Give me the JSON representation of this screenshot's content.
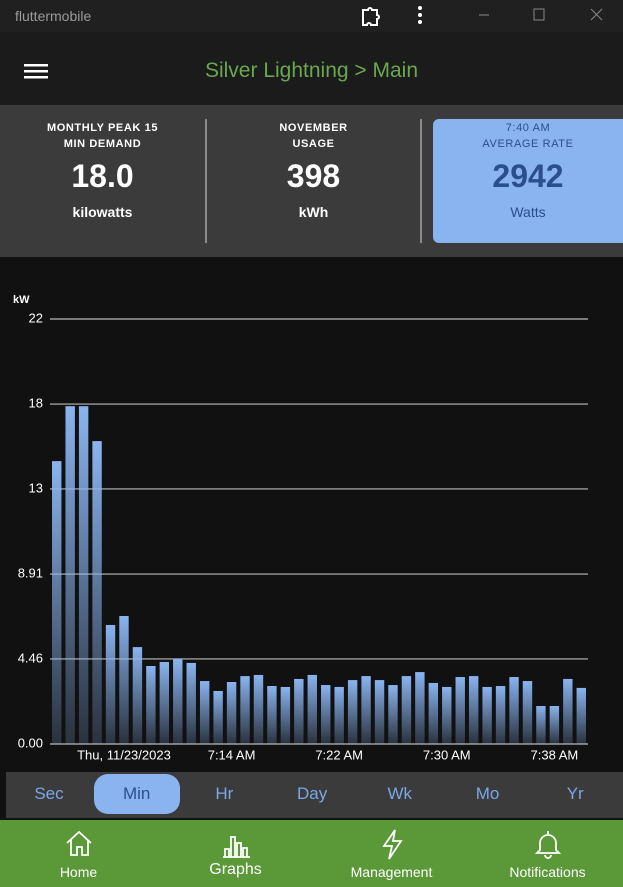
{
  "window": {
    "title": "fluttermobile"
  },
  "app_bar": {
    "title": "Silver Lightning > Main"
  },
  "stats": [
    {
      "label_lines": [
        "MONTHLY PEAK 15",
        "MIN DEMAND"
      ],
      "value": "18.0",
      "unit": "kilowatts"
    },
    {
      "label_lines": [
        "NOVEMBER",
        "USAGE"
      ],
      "value": "398",
      "unit": "kWh"
    },
    {
      "label_lines": [
        "7:40 AM",
        "AVERAGE RATE"
      ],
      "value": "2942",
      "unit": "Watts"
    }
  ],
  "chart_data": {
    "type": "bar",
    "y_label": "kW",
    "color": "#8ab4f0",
    "categories": [
      null,
      null,
      null,
      null,
      null,
      "Thu, 11/23/2023",
      null,
      null,
      null,
      null,
      null,
      null,
      null,
      "7:14 AM",
      null,
      null,
      null,
      null,
      null,
      null,
      null,
      "7:22 AM",
      null,
      null,
      null,
      null,
      null,
      null,
      null,
      "7:30 AM",
      null,
      null,
      null,
      null,
      null,
      null,
      null,
      "7:38 AM",
      null,
      null
    ],
    "values": [
      14.83,
      17.71,
      17.71,
      15.88,
      6.24,
      6.71,
      5.08,
      4.09,
      4.3,
      4.46,
      4.25,
      3.3,
      2.78,
      3.25,
      3.56,
      3.62,
      3.04,
      2.99,
      3.41,
      3.62,
      3.09,
      2.99,
      3.35,
      3.56,
      3.35,
      3.09,
      3.56,
      3.77,
      3.2,
      2.99,
      3.51,
      3.56,
      2.99,
      3.04,
      3.51,
      3.3,
      1.99,
      1.99,
      3.41,
      2.94
    ],
    "ylim": [
      0,
      22.28
    ],
    "yticks": [
      {
        "value": 0,
        "label": "0.00"
      },
      4.46,
      8.91,
      {
        "value": 13.37,
        "label": "13"
      },
      {
        "value": 17.82,
        "label": "18"
      },
      {
        "value": 22.28,
        "label": "22"
      }
    ],
    "grid": true
  },
  "tabs": {
    "items": [
      "Sec",
      "Min",
      "Hr",
      "Day",
      "Wk",
      "Mo",
      "Yr"
    ],
    "selected": 1
  },
  "nav": {
    "items": [
      "Home",
      "Graphs",
      "Management",
      "Notifications"
    ],
    "selected": 1
  }
}
